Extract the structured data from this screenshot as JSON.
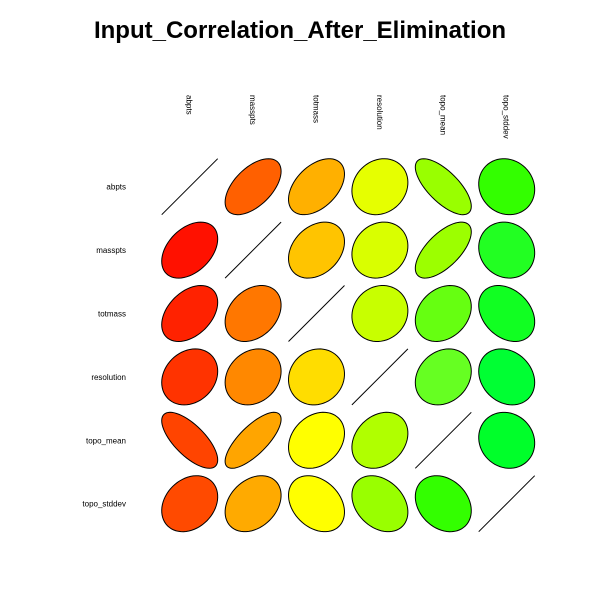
{
  "chart_data": {
    "type": "heatmap",
    "subtype": "correlation-ellipse-matrix",
    "title": "Input_Correlation_After_Elimination",
    "variables": [
      "abpts",
      "masspts",
      "totmass",
      "resolution",
      "topo_mean",
      "topo_stddev"
    ],
    "correlations": [
      [
        1,
        0.55,
        0.45,
        0.15,
        -0.7,
        -0.1
      ],
      [
        0.4,
        1,
        0.3,
        0.15,
        0.65,
        -0.1
      ],
      [
        0.4,
        0.3,
        1,
        0.1,
        0.25,
        -0.3
      ],
      [
        0.2,
        0.2,
        0.1,
        1,
        0.2,
        -0.2
      ],
      [
        -0.7,
        0.75,
        0.25,
        0.25,
        1,
        -0.1
      ],
      [
        0.25,
        0.3,
        -0.3,
        -0.3,
        -0.25,
        1
      ]
    ],
    "fill_colors": [
      [
        null,
        "#ff6000",
        "#ffb000",
        "#e6ff00",
        "#99ff00",
        "#33ff00"
      ],
      [
        null,
        null,
        "#ffc400",
        "#d9ff00",
        "#9cff00",
        "#22ff22"
      ],
      [
        null,
        null,
        null,
        "#c8ff00",
        "#66ff11",
        "#11ff22"
      ],
      [
        null,
        null,
        null,
        null,
        "#66ff22",
        "#00ff33"
      ],
      [
        null,
        null,
        null,
        null,
        null,
        "#00ff2a"
      ],
      [
        null,
        null,
        null,
        null,
        null,
        null
      ]
    ],
    "lower_colors": [
      [
        null,
        null,
        null,
        null,
        null,
        null
      ],
      [
        "#ff1100",
        null,
        null,
        null,
        null,
        null
      ],
      [
        "#ff2200",
        "#ff7700",
        null,
        null,
        null,
        null
      ],
      [
        "#ff3300",
        "#ff8800",
        "#ffdd00",
        null,
        null,
        null
      ],
      [
        "#ff4400",
        "#ffa500",
        "#ffff00",
        "#b0ff00",
        null,
        null
      ],
      [
        "#ff4a00",
        "#ffaa00",
        "#ffff00",
        "#99ff00",
        "#33ff00",
        null
      ]
    ],
    "legend": "none",
    "grid": false
  }
}
